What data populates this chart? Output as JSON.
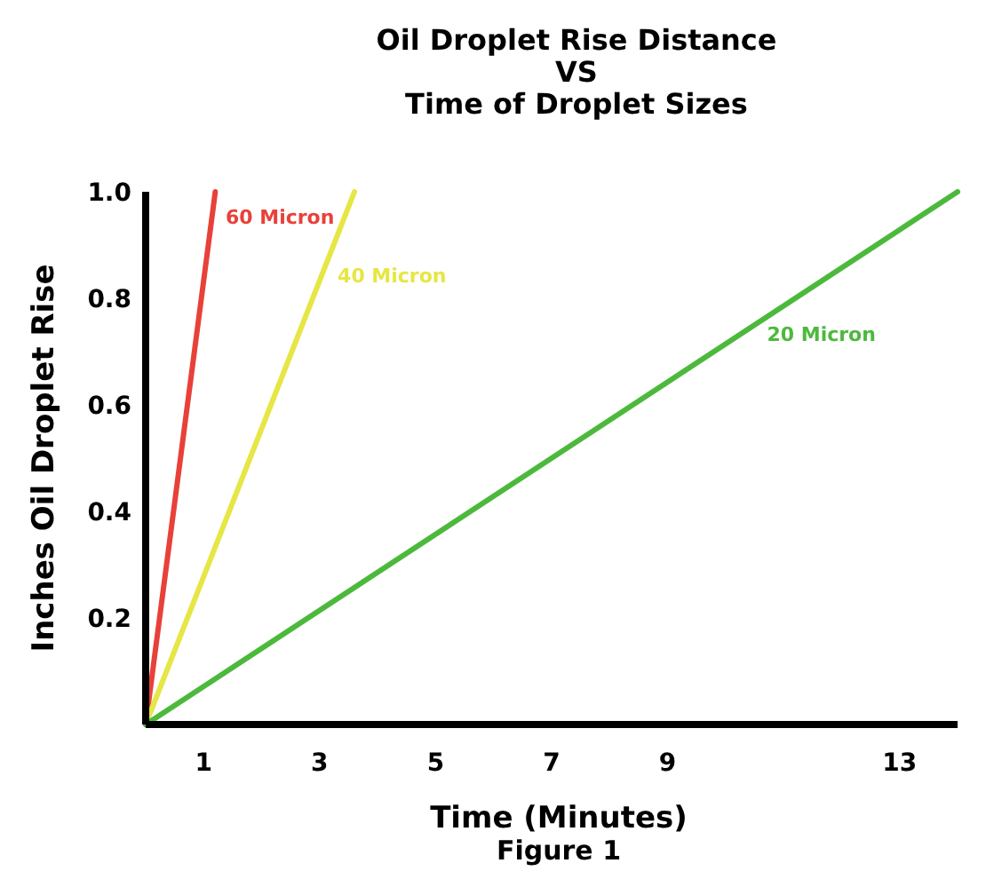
{
  "chart_data": {
    "type": "line",
    "title": "Oil Droplet Rise Distance\nVS\nTime of Droplet Sizes",
    "xlabel": "Time (Minutes)",
    "ylabel": "Inches Oil Droplet Rise",
    "annotations": [
      "Figure 1"
    ],
    "xlim": [
      0,
      14
    ],
    "xticks": [
      1,
      3,
      5,
      7,
      9,
      13
    ],
    "ylim": [
      0,
      1.0
    ],
    "yticks": [
      0.2,
      0.4,
      0.6,
      0.8,
      {
        "value": 1.0,
        "label": "1.0"
      }
    ],
    "grid": false,
    "marker": "none",
    "line_style": "solid",
    "series": [
      {
        "name": "60 Micron",
        "color": "#e8413a",
        "x": [
          0,
          1.2
        ],
        "values": [
          0,
          1.0
        ]
      },
      {
        "name": "40 Micron",
        "color": "#e6e645",
        "x": [
          0,
          3.6
        ],
        "values": [
          0,
          1.0
        ]
      },
      {
        "name": "20 Micron",
        "color": "#4cb93c",
        "x": [
          0,
          14
        ],
        "values": [
          0,
          1.0
        ]
      }
    ]
  }
}
